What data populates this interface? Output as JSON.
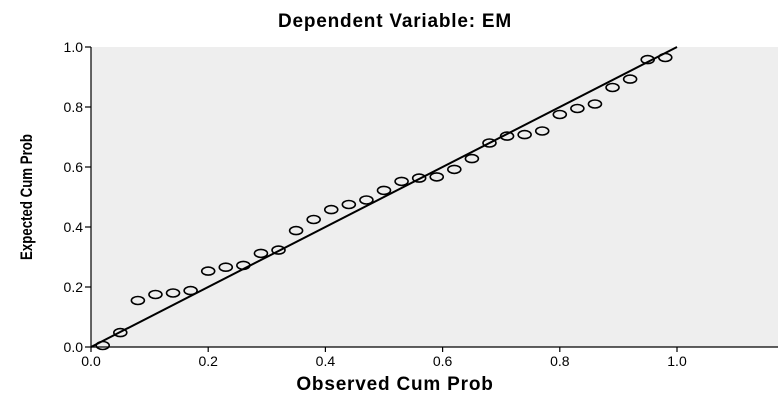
{
  "chart_data": {
    "type": "scatter",
    "title": "Dependent Variable: EM",
    "xlabel": "Observed Cum Prob",
    "ylabel": "Expected Cum Prob",
    "xlim": [
      0.0,
      1.18
    ],
    "ylim": [
      0.0,
      1.0
    ],
    "xticks": [
      "0.0",
      "0.2",
      "0.4",
      "0.6",
      "0.8",
      "1.0"
    ],
    "yticks": [
      "0.0",
      "0.2",
      "0.4",
      "0.6",
      "0.8",
      "1.0"
    ],
    "grid": false,
    "reference_line": {
      "from": [
        0,
        0
      ],
      "to": [
        1,
        1
      ]
    },
    "colors": {
      "plot_background": "#eeeeee",
      "marker": "#000000",
      "line": "#000000"
    },
    "points": [
      {
        "x": 0.02,
        "y": 0.005
      },
      {
        "x": 0.05,
        "y": 0.048
      },
      {
        "x": 0.08,
        "y": 0.155
      },
      {
        "x": 0.11,
        "y": 0.175
      },
      {
        "x": 0.14,
        "y": 0.18
      },
      {
        "x": 0.17,
        "y": 0.188
      },
      {
        "x": 0.2,
        "y": 0.253
      },
      {
        "x": 0.23,
        "y": 0.266
      },
      {
        "x": 0.26,
        "y": 0.272
      },
      {
        "x": 0.29,
        "y": 0.312
      },
      {
        "x": 0.32,
        "y": 0.323
      },
      {
        "x": 0.35,
        "y": 0.388
      },
      {
        "x": 0.38,
        "y": 0.425
      },
      {
        "x": 0.41,
        "y": 0.458
      },
      {
        "x": 0.44,
        "y": 0.475
      },
      {
        "x": 0.47,
        "y": 0.49
      },
      {
        "x": 0.5,
        "y": 0.522
      },
      {
        "x": 0.53,
        "y": 0.552
      },
      {
        "x": 0.56,
        "y": 0.563
      },
      {
        "x": 0.59,
        "y": 0.567
      },
      {
        "x": 0.62,
        "y": 0.592
      },
      {
        "x": 0.65,
        "y": 0.628
      },
      {
        "x": 0.68,
        "y": 0.68
      },
      {
        "x": 0.71,
        "y": 0.703
      },
      {
        "x": 0.74,
        "y": 0.708
      },
      {
        "x": 0.77,
        "y": 0.72
      },
      {
        "x": 0.8,
        "y": 0.775
      },
      {
        "x": 0.83,
        "y": 0.795
      },
      {
        "x": 0.86,
        "y": 0.81
      },
      {
        "x": 0.89,
        "y": 0.865
      },
      {
        "x": 0.92,
        "y": 0.893
      },
      {
        "x": 0.95,
        "y": 0.958
      },
      {
        "x": 0.98,
        "y": 0.965
      }
    ]
  }
}
